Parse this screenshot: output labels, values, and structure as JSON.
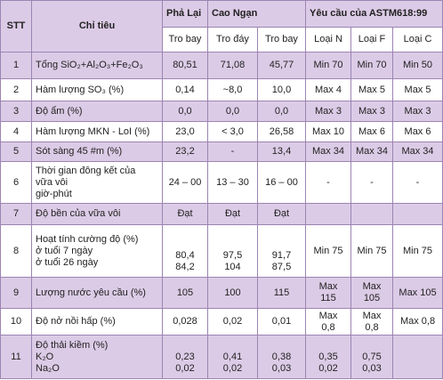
{
  "header": {
    "stt": "STT",
    "chi_tieu": "Chỉ tiêu",
    "groups": [
      "Phả Lại",
      "Cao Ngạn",
      "Yêu cầu của ASTM618:99"
    ],
    "subheaders": [
      "Tro bay",
      "Tro đáy",
      "Tro bay",
      "Loại N",
      "Loại F",
      "Loại C"
    ]
  },
  "rows": [
    {
      "stt": "1",
      "label": [
        "Tổng SiO₂+Al₂O₃+Fe₂O₃"
      ],
      "cells": [
        [
          "80,51"
        ],
        [
          "71,08"
        ],
        [
          "45,77"
        ],
        [
          "Min 70"
        ],
        [
          "Min 70"
        ],
        [
          "Min 50"
        ]
      ]
    },
    {
      "stt": "2",
      "label": [
        "Hàm lượng SO₃ (%)"
      ],
      "cells": [
        [
          "0,14"
        ],
        [
          "~8,0"
        ],
        [
          "10,0"
        ],
        [
          "Max 4"
        ],
        [
          "Max 5"
        ],
        [
          "Max 5"
        ]
      ]
    },
    {
      "stt": "3",
      "label": [
        "Độ ẩm (%)"
      ],
      "cells": [
        [
          "0,0"
        ],
        [
          "0,0"
        ],
        [
          "0,0"
        ],
        [
          "Max 3"
        ],
        [
          "Max 3"
        ],
        [
          "Max 3"
        ]
      ]
    },
    {
      "stt": "4",
      "label": [
        "Hàm lượng MKN - LoI (%)"
      ],
      "cells": [
        [
          "23,0"
        ],
        [
          "< 3,0"
        ],
        [
          "26,58"
        ],
        [
          "Max 10"
        ],
        [
          "Max 6"
        ],
        [
          "Max 6"
        ]
      ]
    },
    {
      "stt": "5",
      "label": [
        "Sót sàng 45 #m (%)"
      ],
      "cells": [
        [
          "23,2"
        ],
        [
          "-"
        ],
        [
          "13,4"
        ],
        [
          "Max 34"
        ],
        [
          "Max 34"
        ],
        [
          "Max 34"
        ]
      ]
    },
    {
      "stt": "6",
      "label": [
        "Thời gian đông kết của",
        "vữa vôi",
        "giờ-phút"
      ],
      "cells": [
        [
          "24 – 00"
        ],
        [
          "13 – 30"
        ],
        [
          "16 – 00"
        ],
        [
          "-"
        ],
        [
          "-"
        ],
        [
          "-"
        ]
      ]
    },
    {
      "stt": "7",
      "label": [
        "Độ bền của vữa vôi"
      ],
      "cells": [
        [
          "Đạt"
        ],
        [
          "Đạt"
        ],
        [
          "Đạt"
        ],
        [],
        [],
        []
      ]
    },
    {
      "stt": "8",
      "label": [
        "Hoạt tính cường độ (%)",
        " ở tuổi 7 ngày",
        " ở tuổi 26 ngày"
      ],
      "cells": [
        [
          "80,4",
          "84,2"
        ],
        [
          "97,5",
          "104"
        ],
        [
          "91,7",
          "87,5"
        ],
        [
          "Min 75"
        ],
        [
          "Min 75"
        ],
        [
          "Min 75"
        ]
      ]
    },
    {
      "stt": "9",
      "label": [
        "Lượng nước yêu cầu  (%)"
      ],
      "cells": [
        [
          "105"
        ],
        [
          "100"
        ],
        [
          "115"
        ],
        [
          "Max",
          "115"
        ],
        [
          "Max",
          "105"
        ],
        [
          "Max 105"
        ]
      ]
    },
    {
      "stt": "10",
      "label": [
        "Độ nở nồi hấp (%)"
      ],
      "cells": [
        [
          "0,028"
        ],
        [
          "0,02"
        ],
        [
          "0,01"
        ],
        [
          "Max",
          "0,8"
        ],
        [
          "Max",
          "0,8"
        ],
        [
          "Max 0,8"
        ]
      ]
    },
    {
      "stt": "11",
      "label": [
        "Độ thải kiềm (%)",
        "K₂O",
        "Na₂O"
      ],
      "cells": [
        [
          "0,23",
          "0,02"
        ],
        [
          "0,41",
          "0,02"
        ],
        [
          "0,38",
          "0,03"
        ],
        [
          "0,35",
          "0,02"
        ],
        [
          "0,75",
          "0,03"
        ],
        []
      ]
    }
  ]
}
